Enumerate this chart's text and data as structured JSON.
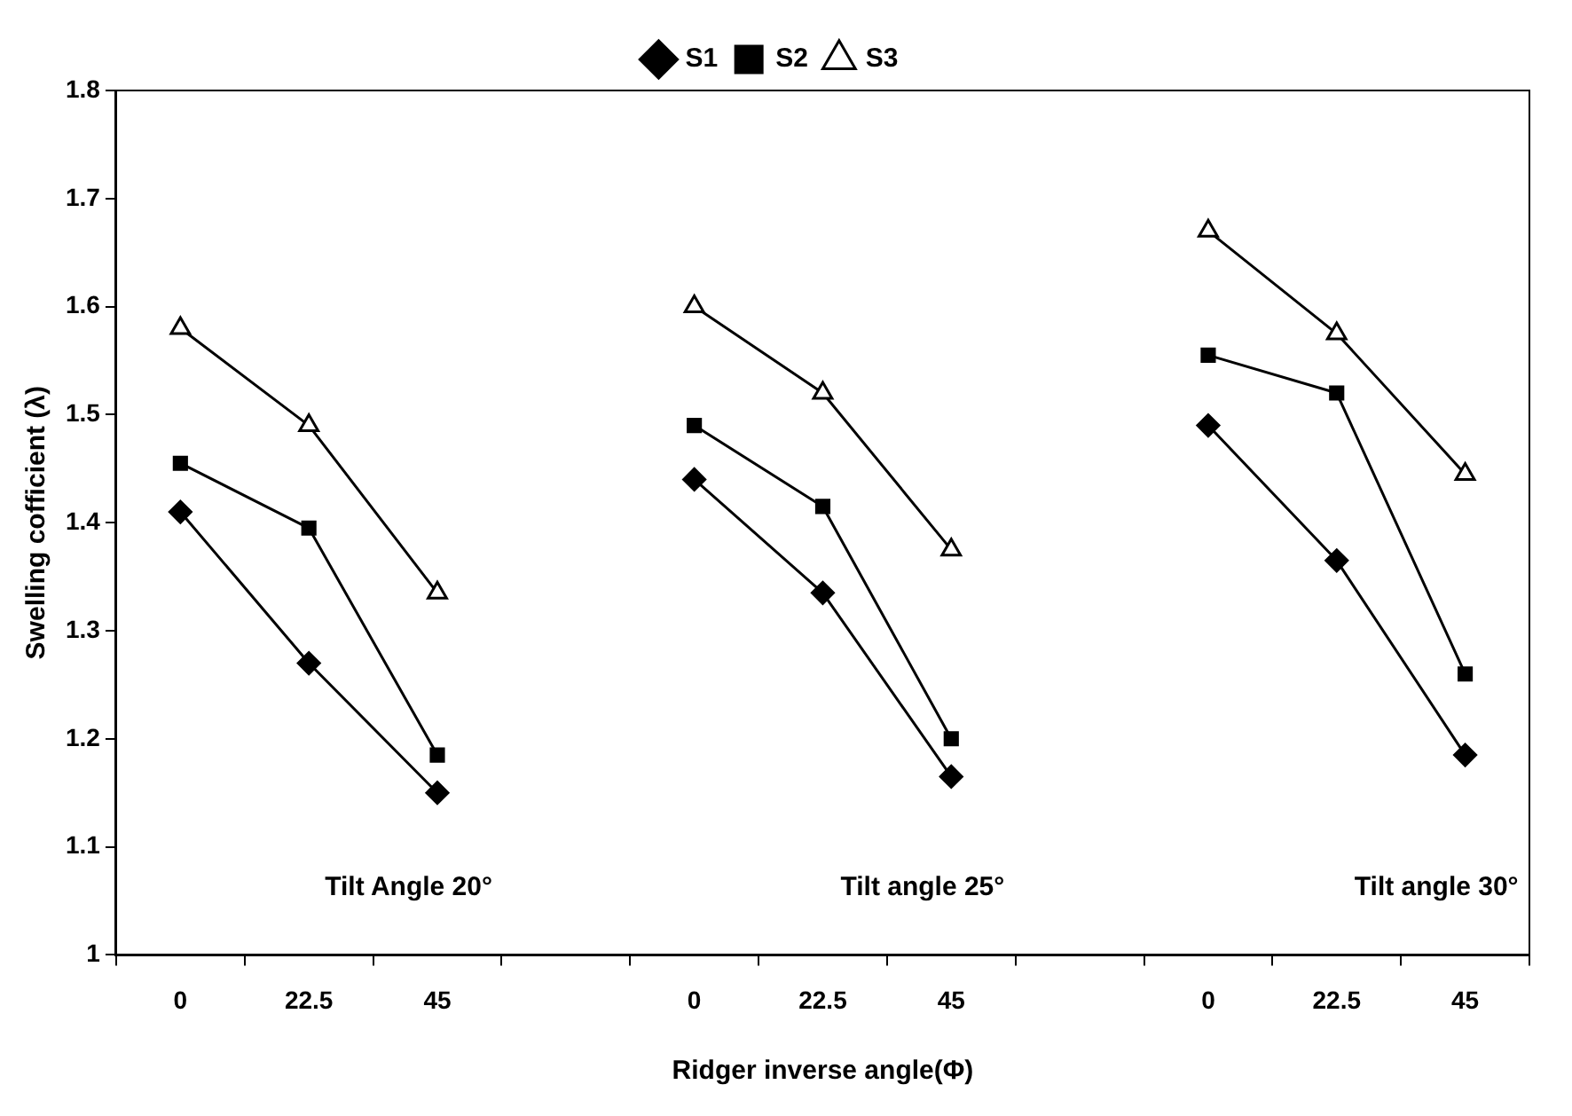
{
  "chart_data": {
    "type": "line",
    "xlabel": "Ridger inverse angle(Φ)",
    "ylabel": "Swelling cofficient (λ)",
    "categories": [
      "0",
      "22.5",
      "45",
      null,
      "0",
      "22.5",
      "45",
      null,
      "0",
      "22.5",
      "45"
    ],
    "series": [
      {
        "name": "S1",
        "color": "#000000",
        "marker": "diamond",
        "values": [
          1.41,
          1.27,
          1.15,
          null,
          1.44,
          1.335,
          1.165,
          null,
          1.49,
          1.365,
          1.185
        ]
      },
      {
        "name": "S2",
        "color": "#000000",
        "marker": "square",
        "values": [
          1.455,
          1.395,
          1.185,
          null,
          1.49,
          1.415,
          1.2,
          null,
          1.555,
          1.52,
          1.26
        ]
      },
      {
        "name": "S3",
        "color": "#000000",
        "marker": "triangle",
        "values": [
          1.58,
          1.49,
          1.335,
          null,
          1.6,
          1.52,
          1.375,
          null,
          1.67,
          1.575,
          1.445
        ]
      }
    ],
    "ylim": [
      1,
      1.8
    ],
    "yticks": [
      {
        "value": 1,
        "label": "1"
      },
      1.1,
      1.2,
      1.3,
      1.4,
      1.5,
      1.6,
      1.7,
      1.8
    ],
    "grid": false,
    "legend": "top",
    "line_style": "solid",
    "annotations": [
      "Tilt Angle 20°",
      "Tilt angle 25°",
      "Tilt angle 30°"
    ]
  }
}
